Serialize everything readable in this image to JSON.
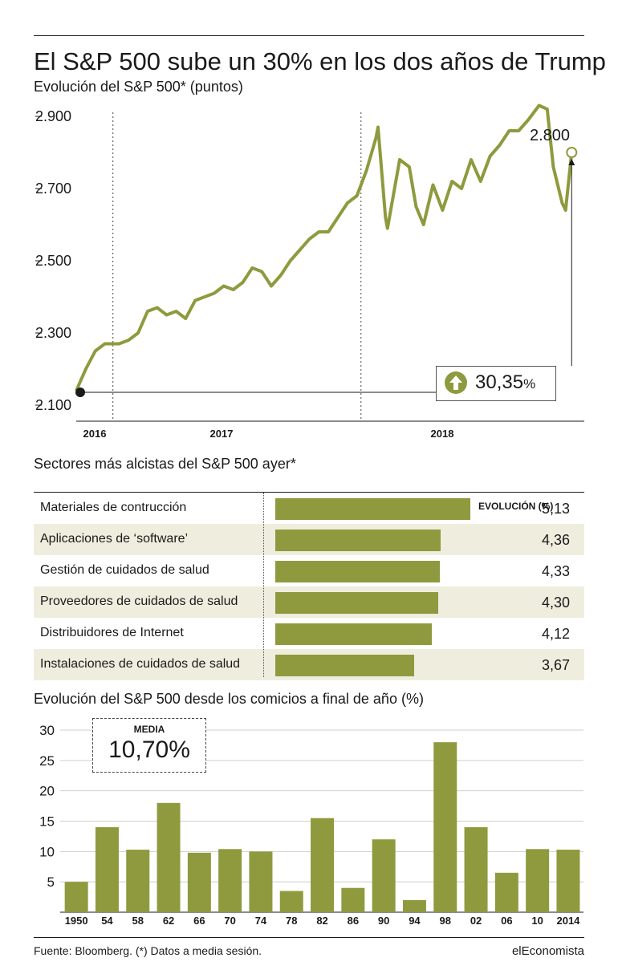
{
  "header": {
    "title": "El S&P 500 sube un 30% en los dos años de Trump",
    "subtitle": "Evolución del S&P 500* (puntos)"
  },
  "line_chart": {
    "end_label": "2.800",
    "change_value": "30,35",
    "change_unit": "%",
    "change_icon": "up-arrow-icon"
  },
  "sectors": {
    "title": "Sectores más alcistas del S&P 500 ayer*",
    "value_header": "EVOLUCIÓN (%)",
    "rows": [
      {
        "label": "Materiales de contrucción",
        "value": "5,13"
      },
      {
        "label": "Aplicaciones de ‘software’",
        "value": "4,36"
      },
      {
        "label": "Gestión de cuidados de salud",
        "value": "4,33"
      },
      {
        "label": "Proveedores de cuidados de salud",
        "value": "4,30"
      },
      {
        "label": "Distribuidores de Internet",
        "value": "4,12"
      },
      {
        "label": "Instalaciones de cuidados de salud",
        "value": "3,67"
      }
    ]
  },
  "elections": {
    "title": "Evolución del S&P 500 desde los comicios a final de año (%)",
    "media_label": "MEDIA",
    "media_value": "10,70%"
  },
  "footer": {
    "source": "Fuente: Bloomberg. (*) Datos a media sesión.",
    "brand": "elEconomista"
  },
  "colors": {
    "accent": "#8f9a3e",
    "band": "#efedde"
  },
  "chart_data": [
    {
      "type": "line",
      "title": "Evolución del S&P 500* (puntos)",
      "x_tick_labels": [
        "2016",
        "2017",
        "2018"
      ],
      "y_ticks": [
        2100,
        2300,
        2500,
        2700,
        2900
      ],
      "y_tick_labels": [
        "2.100",
        "2.300",
        "2.500",
        "2.700",
        "2.900"
      ],
      "ylim": [
        2100,
        2900
      ],
      "grid": "vertical dotted at year starts",
      "series": [
        {
          "x": [
            "2016-11-08",
            "2016-11-22",
            "2016-12-06",
            "2016-12-20",
            "2017-01-10",
            "2017-01-24",
            "2017-02-07",
            "2017-02-21",
            "2017-03-07",
            "2017-03-21",
            "2017-04-04",
            "2017-04-18",
            "2017-05-02",
            "2017-05-16",
            "2017-05-30",
            "2017-06-13",
            "2017-06-27",
            "2017-07-11",
            "2017-07-25",
            "2017-08-08",
            "2017-08-22",
            "2017-09-05",
            "2017-09-19",
            "2017-10-03",
            "2017-10-17",
            "2017-10-31",
            "2017-11-14",
            "2017-11-28",
            "2017-12-12",
            "2017-12-26",
            "2018-01-09",
            "2018-01-23",
            "2018-01-26",
            "2018-02-06",
            "2018-02-09",
            "2018-02-27",
            "2018-03-13",
            "2018-03-23",
            "2018-04-03",
            "2018-04-17",
            "2018-05-01",
            "2018-05-15",
            "2018-05-29",
            "2018-06-12",
            "2018-06-26",
            "2018-07-10",
            "2018-07-24",
            "2018-08-07",
            "2018-08-21",
            "2018-09-04",
            "2018-09-20",
            "2018-10-02",
            "2018-10-11",
            "2018-10-24",
            "2018-10-29",
            "2018-11-07"
          ],
          "values": [
            2140,
            2200,
            2250,
            2270,
            2270,
            2280,
            2300,
            2360,
            2370,
            2350,
            2360,
            2340,
            2390,
            2400,
            2410,
            2430,
            2420,
            2440,
            2480,
            2470,
            2430,
            2460,
            2500,
            2530,
            2560,
            2580,
            2580,
            2620,
            2660,
            2680,
            2750,
            2840,
            2870,
            2620,
            2590,
            2780,
            2760,
            2650,
            2600,
            2710,
            2640,
            2720,
            2700,
            2780,
            2720,
            2790,
            2820,
            2860,
            2860,
            2890,
            2930,
            2920,
            2760,
            2660,
            2640,
            2800
          ]
        }
      ],
      "annotations": [
        "2.800",
        "30,35%"
      ]
    },
    {
      "type": "bar",
      "orientation": "horizontal",
      "title": "Sectores más alcistas del S&P 500 ayer*",
      "categories": [
        "Materiales de contrucción",
        "Aplicaciones de ‘software’",
        "Gestión de cuidados de salud",
        "Proveedores de cuidados de salud",
        "Distribuidores de Internet",
        "Instalaciones de cuidados de salud"
      ],
      "values": [
        5.13,
        4.36,
        4.33,
        4.3,
        4.12,
        3.67
      ],
      "xlim": [
        0,
        5.5
      ]
    },
    {
      "type": "bar",
      "title": "Evolución del S&P 500 desde los comicios a final de año (%)",
      "categories": [
        "1950",
        "54",
        "58",
        "62",
        "66",
        "70",
        "74",
        "78",
        "82",
        "86",
        "90",
        "94",
        "98",
        "02",
        "06",
        "10",
        "2014"
      ],
      "values": [
        5,
        14,
        10.3,
        18,
        9.8,
        10.4,
        10,
        3.5,
        15.5,
        4,
        12,
        2,
        28,
        14,
        6.5,
        10.4,
        10.3
      ],
      "y_ticks": [
        5,
        10,
        15,
        20,
        25,
        30
      ],
      "ylim": [
        0,
        30
      ],
      "grid": "horizontal"
    }
  ]
}
